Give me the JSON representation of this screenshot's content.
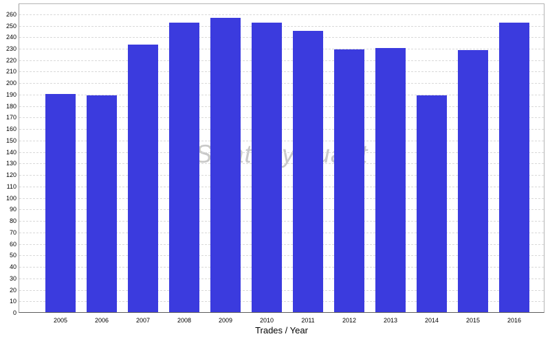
{
  "chart_data": {
    "type": "bar",
    "title": "Trades / Year",
    "xlabel": "Trades / Year",
    "ylabel": "",
    "categories": [
      "2005",
      "2006",
      "2007",
      "2008",
      "2009",
      "2010",
      "2011",
      "2012",
      "2013",
      "2014",
      "2015",
      "2016"
    ],
    "values": [
      190,
      189,
      233,
      252,
      256,
      252,
      245,
      229,
      230,
      189,
      228,
      252
    ],
    "series": [
      {
        "name": "Trades",
        "values": [
          190,
          189,
          233,
          252,
          256,
          252,
          245,
          229,
          230,
          189,
          228,
          252
        ]
      }
    ],
    "ylim": [
      0,
      260
    ],
    "ytick_step": 10,
    "yticks": [
      0,
      10,
      20,
      30,
      40,
      50,
      60,
      70,
      80,
      90,
      100,
      110,
      120,
      130,
      140,
      150,
      160,
      170,
      180,
      190,
      200,
      210,
      220,
      230,
      240,
      250,
      260
    ],
    "grid": "horizontal-dashed",
    "legend": "none",
    "watermark": "StrategyQuant"
  },
  "colors": {
    "background": "#FFFFFF",
    "bar": "#3B3BDE",
    "grid": "#D8D8D8",
    "plot_border": "#B3B3B3",
    "axis_line": "#5A5A5A",
    "tick_text": "#000000",
    "title_text": "#000000",
    "watermark": "#C9C9C9"
  }
}
